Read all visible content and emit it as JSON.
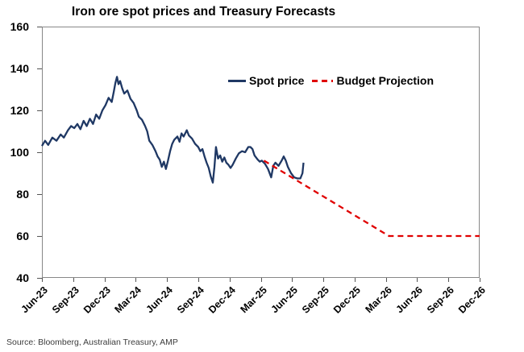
{
  "title": "Iron ore spot prices and Treasury Forecasts",
  "source": "Source: Bloomberg, Australian Treasury, AMP",
  "legend": {
    "spot": "Spot price",
    "projection": "Budget Projection"
  },
  "colors": {
    "spot_line": "#1f3864",
    "projection_line": "#e00000",
    "frame": "#888888",
    "tick": "#555555",
    "text": "#000000",
    "source_text": "#3c3c3c"
  },
  "chart_data": {
    "type": "line",
    "title": "Iron ore spot prices and Treasury Forecasts",
    "xlabel": "",
    "ylabel": "",
    "x_unit": "months since Jun-2023 (0 = Jun-23)",
    "xlim": [
      0,
      42
    ],
    "ylim": [
      40,
      160
    ],
    "grid": false,
    "legend_position": "inside-top-center",
    "y_ticks": [
      160,
      140,
      120,
      100,
      80,
      60,
      40
    ],
    "x_ticks": {
      "positions": [
        0,
        3,
        6,
        9,
        12,
        15,
        18,
        21,
        24,
        27,
        30,
        33,
        36,
        39,
        42
      ],
      "labels": [
        "Jun-23",
        "Sep-23",
        "Dec-23",
        "Mar-24",
        "Jun-24",
        "Sep-24",
        "Dec-24",
        "Mar-25",
        "Jun-25",
        "Sep-25",
        "Dec-25",
        "Mar-26",
        "Jun-26",
        "Sep-26",
        "Dec-26"
      ]
    },
    "series": [
      {
        "name": "Spot price",
        "style": "solid",
        "color_key": "spot_line",
        "points": [
          [
            0,
            103
          ],
          [
            0.3,
            105.5
          ],
          [
            0.6,
            103.5
          ],
          [
            1,
            107
          ],
          [
            1.4,
            105.5
          ],
          [
            1.8,
            108.5
          ],
          [
            2.1,
            107
          ],
          [
            2.5,
            110.5
          ],
          [
            2.8,
            112.5
          ],
          [
            3.1,
            111.5
          ],
          [
            3.4,
            113.5
          ],
          [
            3.7,
            111
          ],
          [
            4,
            115
          ],
          [
            4.3,
            112.5
          ],
          [
            4.6,
            116
          ],
          [
            4.9,
            113.5
          ],
          [
            5.2,
            118
          ],
          [
            5.5,
            116
          ],
          [
            5.8,
            120
          ],
          [
            6.1,
            122.5
          ],
          [
            6.4,
            126
          ],
          [
            6.7,
            124
          ],
          [
            6.9,
            129
          ],
          [
            7.05,
            133
          ],
          [
            7.2,
            136
          ],
          [
            7.35,
            132.5
          ],
          [
            7.5,
            134
          ],
          [
            7.7,
            130.5
          ],
          [
            7.9,
            128
          ],
          [
            8.2,
            129.5
          ],
          [
            8.5,
            125.5
          ],
          [
            8.8,
            123.5
          ],
          [
            9.1,
            120
          ],
          [
            9.3,
            117
          ],
          [
            9.6,
            115.5
          ],
          [
            9.9,
            112.5
          ],
          [
            10.1,
            110
          ],
          [
            10.3,
            105.5
          ],
          [
            10.6,
            103.5
          ],
          [
            10.9,
            100.5
          ],
          [
            11.1,
            98
          ],
          [
            11.3,
            96.5
          ],
          [
            11.5,
            93
          ],
          [
            11.7,
            95.5
          ],
          [
            11.9,
            92
          ],
          [
            12.1,
            96
          ],
          [
            12.3,
            100.5
          ],
          [
            12.5,
            104
          ],
          [
            12.7,
            106
          ],
          [
            13,
            107.5
          ],
          [
            13.2,
            105
          ],
          [
            13.4,
            109
          ],
          [
            13.6,
            107.5
          ],
          [
            13.9,
            110.5
          ],
          [
            14.1,
            108
          ],
          [
            14.4,
            106.5
          ],
          [
            14.7,
            104
          ],
          [
            15,
            102.5
          ],
          [
            15.2,
            100.5
          ],
          [
            15.4,
            101.5
          ],
          [
            15.6,
            98
          ],
          [
            15.8,
            95
          ],
          [
            16,
            92.5
          ],
          [
            16.2,
            88.5
          ],
          [
            16.4,
            85.5
          ],
          [
            16.55,
            93
          ],
          [
            16.7,
            102.5
          ],
          [
            16.9,
            97
          ],
          [
            17.1,
            98.5
          ],
          [
            17.3,
            95.5
          ],
          [
            17.5,
            97.5
          ],
          [
            17.7,
            95
          ],
          [
            17.9,
            94
          ],
          [
            18.1,
            92.5
          ],
          [
            18.3,
            94
          ],
          [
            18.6,
            97
          ],
          [
            18.9,
            99.5
          ],
          [
            19.2,
            100.5
          ],
          [
            19.5,
            100
          ],
          [
            19.8,
            102.5
          ],
          [
            20,
            102.5
          ],
          [
            20.2,
            101.5
          ],
          [
            20.4,
            98.5
          ],
          [
            20.7,
            96.5
          ],
          [
            20.9,
            95.5
          ],
          [
            21.1,
            96
          ],
          [
            21.4,
            94.5
          ],
          [
            21.7,
            92
          ],
          [
            22,
            88
          ],
          [
            22.2,
            93.5
          ],
          [
            22.4,
            95
          ],
          [
            22.7,
            93.5
          ],
          [
            23,
            96
          ],
          [
            23.2,
            98
          ],
          [
            23.4,
            96
          ],
          [
            23.6,
            93
          ],
          [
            23.9,
            90
          ],
          [
            24.2,
            88
          ],
          [
            24.5,
            87.5
          ],
          [
            24.8,
            87.5
          ],
          [
            25,
            90
          ],
          [
            25.1,
            95
          ]
        ]
      },
      {
        "name": "Budget Projection",
        "style": "dashed",
        "color_key": "projection_line",
        "points": [
          [
            21.3,
            96
          ],
          [
            33.3,
            60
          ],
          [
            42,
            60
          ]
        ]
      }
    ]
  }
}
